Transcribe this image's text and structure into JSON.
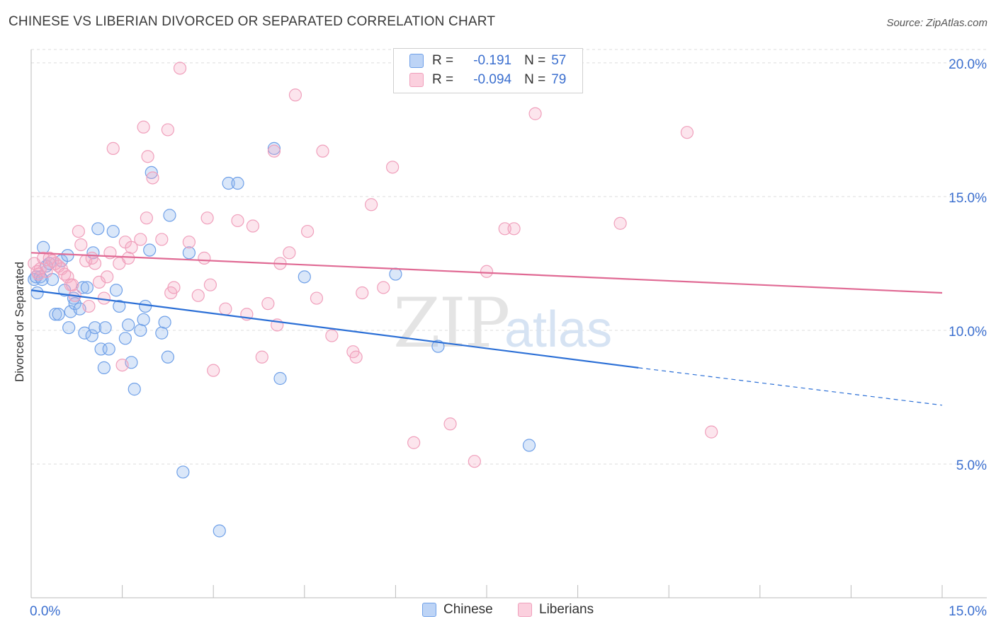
{
  "title": "CHINESE VS LIBERIAN DIVORCED OR SEPARATED CORRELATION CHART",
  "source": "Source: ZipAtlas.com",
  "watermark": "ZIPatlas",
  "legend": {
    "rows": [
      {
        "r_label": "R =",
        "r_value": "-0.191",
        "n_label": "N =",
        "n_value": "57",
        "color": "#6fa0e8"
      },
      {
        "r_label": "R =",
        "r_value": "-0.094",
        "n_label": "N =",
        "n_value": "79",
        "color": "#f0a0bc"
      }
    ]
  },
  "bottom_legend": [
    "Chinese",
    "Liberians"
  ],
  "chart_data": {
    "type": "scatter",
    "title": "CHINESE VS LIBERIAN DIVORCED OR SEPARATED CORRELATION CHART",
    "xlabel": "",
    "ylabel": "Divorced or Separated",
    "xlim": [
      0,
      15
    ],
    "ylim": [
      0,
      20.5
    ],
    "x_tick_labels": [
      "0.0%",
      "15.0%"
    ],
    "y_tick_labels": [
      "5.0%",
      "10.0%",
      "15.0%",
      "20.0%"
    ],
    "y_ticks": [
      5,
      10,
      15,
      20
    ],
    "grid": true,
    "series": [
      {
        "name": "Chinese",
        "color": "#6fa0e8",
        "trend": {
          "x0": 0,
          "y0": 11.5,
          "x1": 10,
          "y1": 8.6,
          "x_dash_end": 15,
          "y_dash_end": 7.2
        },
        "points": [
          [
            0.05,
            11.9
          ],
          [
            0.1,
            11.4
          ],
          [
            0.15,
            12.0
          ],
          [
            0.2,
            13.1
          ],
          [
            0.25,
            12.4
          ],
          [
            0.3,
            12.5
          ],
          [
            0.35,
            11.9
          ],
          [
            0.4,
            10.6
          ],
          [
            0.45,
            10.6
          ],
          [
            0.5,
            12.6
          ],
          [
            0.55,
            11.5
          ],
          [
            0.6,
            12.8
          ],
          [
            0.62,
            10.1
          ],
          [
            0.65,
            10.7
          ],
          [
            0.7,
            11.2
          ],
          [
            0.72,
            11.0
          ],
          [
            0.8,
            10.8
          ],
          [
            0.85,
            11.6
          ],
          [
            0.88,
            9.9
          ],
          [
            0.92,
            11.6
          ],
          [
            1.0,
            9.8
          ],
          [
            1.02,
            12.9
          ],
          [
            1.05,
            10.1
          ],
          [
            1.1,
            13.8
          ],
          [
            1.15,
            9.3
          ],
          [
            1.2,
            8.6
          ],
          [
            1.22,
            10.1
          ],
          [
            1.28,
            9.3
          ],
          [
            1.35,
            13.7
          ],
          [
            1.4,
            11.5
          ],
          [
            1.45,
            10.9
          ],
          [
            1.55,
            9.7
          ],
          [
            1.6,
            10.2
          ],
          [
            1.65,
            8.8
          ],
          [
            1.7,
            7.8
          ],
          [
            1.8,
            10.0
          ],
          [
            1.85,
            10.4
          ],
          [
            1.88,
            10.9
          ],
          [
            1.95,
            13.0
          ],
          [
            1.98,
            15.9
          ],
          [
            2.15,
            9.9
          ],
          [
            2.2,
            10.3
          ],
          [
            2.25,
            9.0
          ],
          [
            2.28,
            14.3
          ],
          [
            2.5,
            4.7
          ],
          [
            2.6,
            12.9
          ],
          [
            3.1,
            2.5
          ],
          [
            3.25,
            15.5
          ],
          [
            3.4,
            15.5
          ],
          [
            4.0,
            16.8
          ],
          [
            4.1,
            8.2
          ],
          [
            4.5,
            12.0
          ],
          [
            6.0,
            12.1
          ],
          [
            6.7,
            9.4
          ],
          [
            8.2,
            5.7
          ],
          [
            0.08,
            12.0
          ],
          [
            0.18,
            11.9
          ]
        ]
      },
      {
        "name": "Liberians",
        "color": "#f0a0bc",
        "trend": {
          "x0": 0,
          "y0": 12.9,
          "x1": 15,
          "y1": 11.4
        },
        "points": [
          [
            0.05,
            12.5
          ],
          [
            0.1,
            12.2
          ],
          [
            0.15,
            12.3
          ],
          [
            0.2,
            12.7
          ],
          [
            0.25,
            12.2
          ],
          [
            0.3,
            12.7
          ],
          [
            0.35,
            12.6
          ],
          [
            0.45,
            12.4
          ],
          [
            0.5,
            12.3
          ],
          [
            0.55,
            12.1
          ],
          [
            0.6,
            12.0
          ],
          [
            0.65,
            11.7
          ],
          [
            0.72,
            11.3
          ],
          [
            0.78,
            13.7
          ],
          [
            0.82,
            13.2
          ],
          [
            0.9,
            12.6
          ],
          [
            0.95,
            10.9
          ],
          [
            1.0,
            12.7
          ],
          [
            1.05,
            12.5
          ],
          [
            1.12,
            11.8
          ],
          [
            1.2,
            11.2
          ],
          [
            1.25,
            12.0
          ],
          [
            1.3,
            12.9
          ],
          [
            1.35,
            16.8
          ],
          [
            1.45,
            12.5
          ],
          [
            1.5,
            8.7
          ],
          [
            1.55,
            13.3
          ],
          [
            1.6,
            12.7
          ],
          [
            1.65,
            13.1
          ],
          [
            1.8,
            13.4
          ],
          [
            1.85,
            17.6
          ],
          [
            1.9,
            14.2
          ],
          [
            1.92,
            16.5
          ],
          [
            2.0,
            15.7
          ],
          [
            2.15,
            13.4
          ],
          [
            2.25,
            17.5
          ],
          [
            2.3,
            11.4
          ],
          [
            2.35,
            11.6
          ],
          [
            2.45,
            19.8
          ],
          [
            2.6,
            13.3
          ],
          [
            2.75,
            11.3
          ],
          [
            2.85,
            12.7
          ],
          [
            2.9,
            14.2
          ],
          [
            2.95,
            11.7
          ],
          [
            3.0,
            8.5
          ],
          [
            3.2,
            10.8
          ],
          [
            3.4,
            14.1
          ],
          [
            3.55,
            10.6
          ],
          [
            3.65,
            13.9
          ],
          [
            3.8,
            9.0
          ],
          [
            3.9,
            11.0
          ],
          [
            4.0,
            16.7
          ],
          [
            4.05,
            10.2
          ],
          [
            4.1,
            12.5
          ],
          [
            4.25,
            12.9
          ],
          [
            4.35,
            18.8
          ],
          [
            4.55,
            13.7
          ],
          [
            4.7,
            11.2
          ],
          [
            4.8,
            16.7
          ],
          [
            4.95,
            9.8
          ],
          [
            5.3,
            9.2
          ],
          [
            5.35,
            9.0
          ],
          [
            5.45,
            11.4
          ],
          [
            5.6,
            14.7
          ],
          [
            5.8,
            11.6
          ],
          [
            5.95,
            16.1
          ],
          [
            6.3,
            5.8
          ],
          [
            6.9,
            6.5
          ],
          [
            7.3,
            5.1
          ],
          [
            7.5,
            12.2
          ],
          [
            7.8,
            13.8
          ],
          [
            7.95,
            13.8
          ],
          [
            8.3,
            18.1
          ],
          [
            9.7,
            14.0
          ],
          [
            10.8,
            17.4
          ],
          [
            11.2,
            6.2
          ],
          [
            0.12,
            12.1
          ],
          [
            0.4,
            12.5
          ],
          [
            0.68,
            11.7
          ]
        ]
      }
    ]
  }
}
